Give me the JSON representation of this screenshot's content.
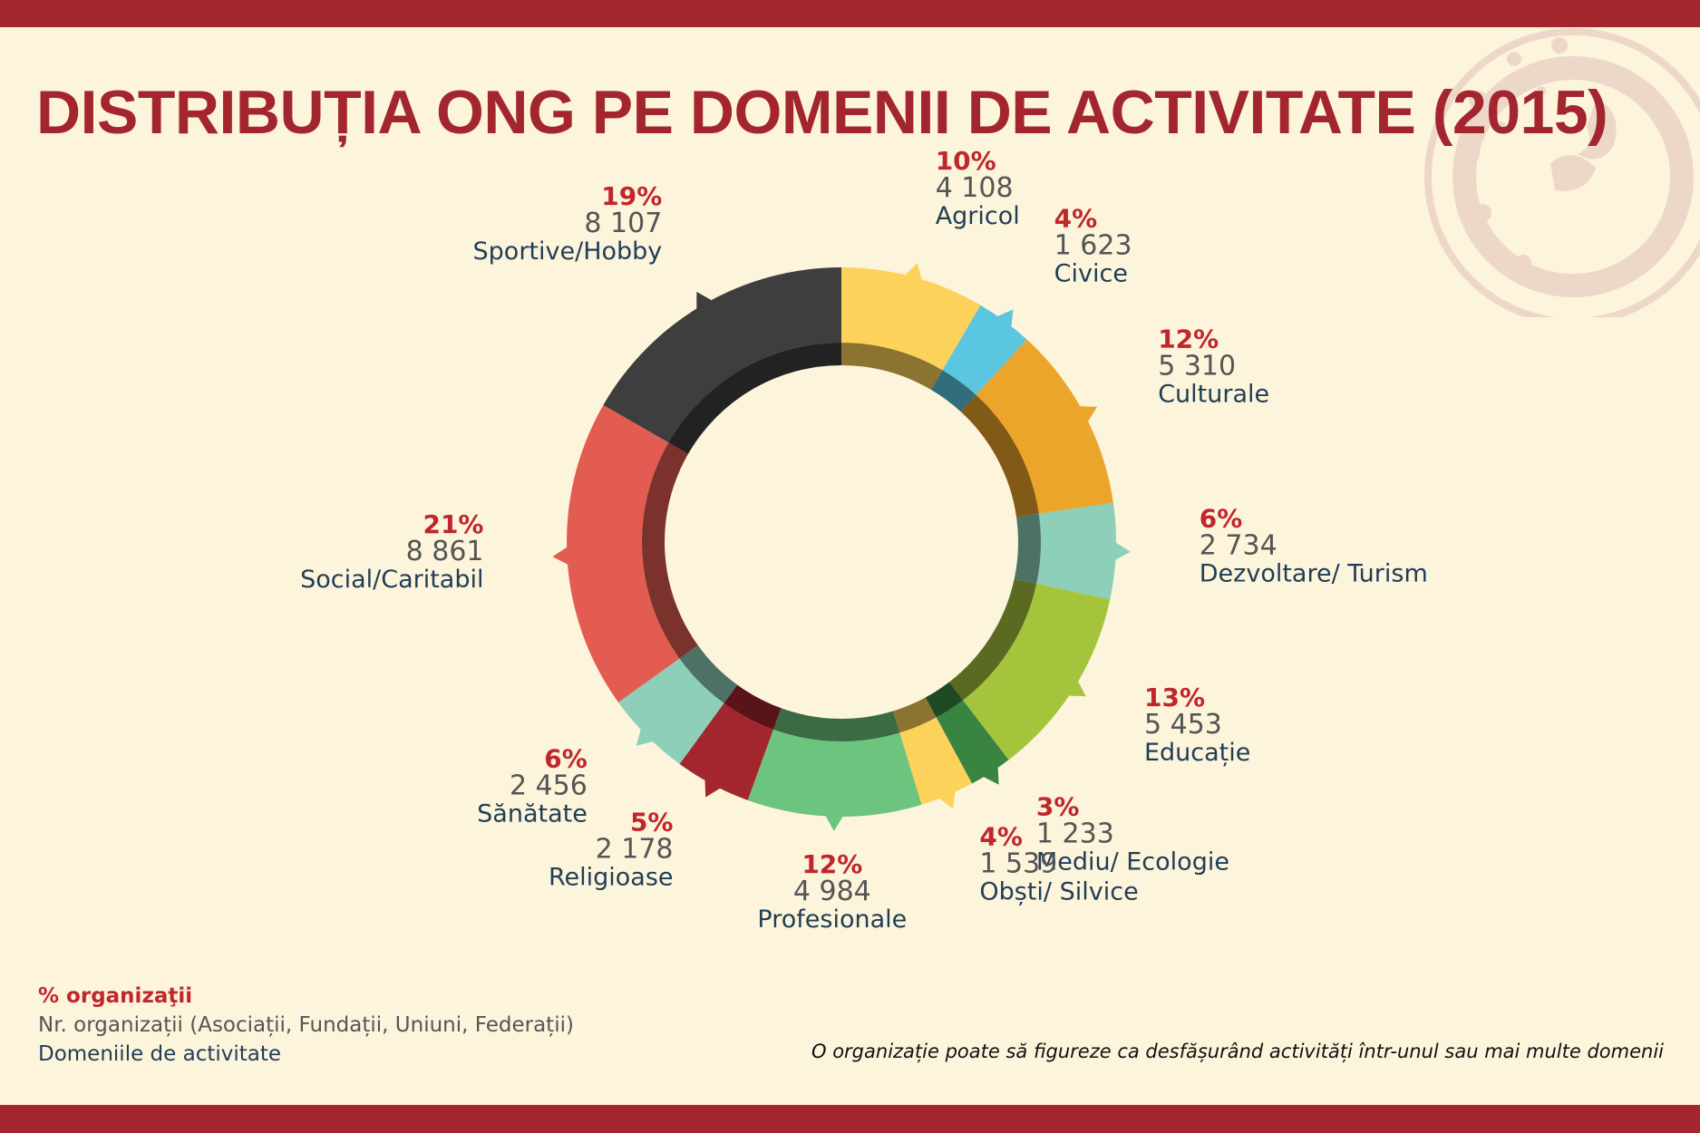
{
  "title": "DISTRIBUȚIA ONG PE DOMENII DE ACTIVITATE (2015)",
  "legend": {
    "percent_label": "% organizaţii",
    "count_label": "Nr. organizații (Asociații, Fundații, Uniuni, Federații)",
    "domain_label": "Domeniile de activitate"
  },
  "note": "O organizație poate să figureze ca desfășurând activități într-unul sau mai multe domenii",
  "colors": {
    "brand": "#a3262f",
    "percent_text": "#c0272d",
    "count_text": "#555555",
    "label_text": "#1f3e55",
    "background": "#fdf4dc"
  },
  "chart_data": {
    "type": "donut",
    "slices": [
      {
        "label": "Agricol",
        "percent": "10%",
        "count": "4 108",
        "value": 4108,
        "color": "#fdd25a"
      },
      {
        "label": "Civice",
        "percent": "4%",
        "count": "1 623",
        "value": 1623,
        "color": "#5bc6df"
      },
      {
        "label": "Culturale",
        "percent": "12%",
        "count": "5 310",
        "value": 5310,
        "color": "#eba52a"
      },
      {
        "label": "Dezvoltare/ Turism",
        "percent": "6%",
        "count": "2 734",
        "value": 2734,
        "color": "#8dcfb8"
      },
      {
        "label": "Educație",
        "percent": "13%",
        "count": "5 453",
        "value": 5453,
        "color": "#a4c43c"
      },
      {
        "label": "Mediu/ Ecologie",
        "percent": "3%",
        "count": "1 233",
        "value": 1233,
        "color": "#3a8442"
      },
      {
        "label": "Obști/ Silvice",
        "percent": "4%",
        "count": "1 539",
        "value": 1539,
        "color": "#fdd25a"
      },
      {
        "label": "Profesionale",
        "percent": "12%",
        "count": "4 984",
        "value": 4984,
        "color": "#6cc47e"
      },
      {
        "label": "Religioase",
        "percent": "5%",
        "count": "2 178",
        "value": 2178,
        "color": "#a3262f"
      },
      {
        "label": "Sănătate",
        "percent": "6%",
        "count": "2 456",
        "value": 2456,
        "color": "#8dcfb8"
      },
      {
        "label": "Social/Caritabil",
        "percent": "21%",
        "count": "8 861",
        "value": 8861,
        "color": "#e25c51"
      },
      {
        "label": "Sportive/Hobby",
        "percent": "19%",
        "count": "8 107",
        "value": 8107,
        "color": "#3e3e3e"
      }
    ]
  }
}
